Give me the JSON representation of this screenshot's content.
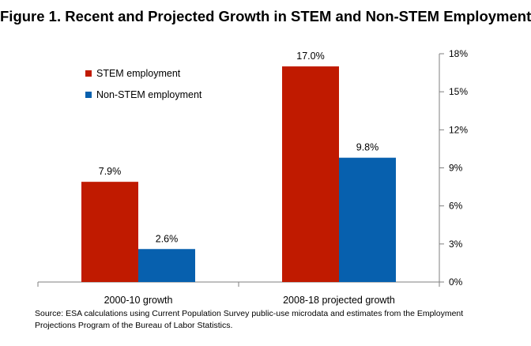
{
  "chart_data": {
    "type": "bar",
    "title": "Figure 1. Recent and Projected Growth in STEM and Non-STEM Employment",
    "categories": [
      "2000-10 growth",
      "2008-18 projected growth"
    ],
    "series": [
      {
        "name": "STEM employment",
        "values": [
          7.9,
          17.0
        ],
        "labels": [
          "7.9%",
          "17.0%"
        ],
        "color": "#c01a00"
      },
      {
        "name": "Non-STEM employment",
        "values": [
          2.6,
          9.8
        ],
        "labels": [
          "2.6%",
          "9.8%"
        ],
        "color": "#0760ae"
      }
    ],
    "ylim": [
      0,
      18
    ],
    "yticks": [
      0,
      3,
      6,
      9,
      12,
      15,
      18
    ],
    "ytick_labels": [
      "0%",
      "3%",
      "6%",
      "9%",
      "12%",
      "15%",
      "18%"
    ],
    "y_axis_side": "right",
    "legend_position": "top-left",
    "grid": false
  },
  "source": "Source:  ESA calculations using Current Population Survey public-use microdata and  estimates from the Employment Projections Program of the Bureau of Labor Statistics."
}
